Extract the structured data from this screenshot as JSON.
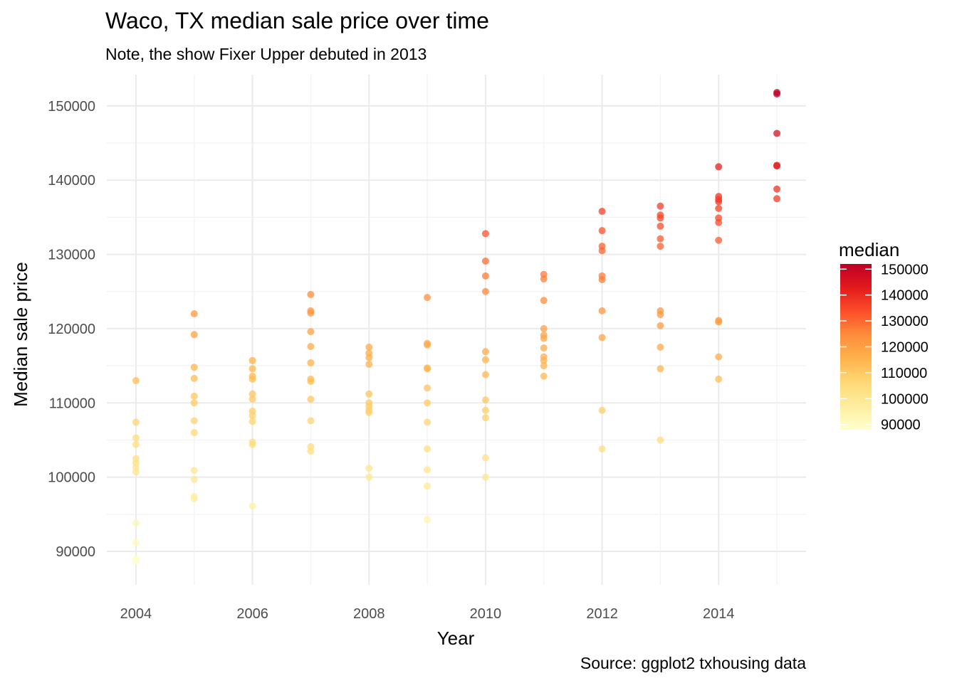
{
  "chart_data": {
    "type": "scatter",
    "title": "Waco, TX median sale price over time",
    "subtitle": "Note, the show Fixer Upper debuted in 2013",
    "xlabel": "Year",
    "ylabel": "Median sale price",
    "caption": "Source: ggplot2 txhousing data",
    "xlim": [
      2003.5,
      2015.5
    ],
    "ylim": [
      85500,
      154200
    ],
    "x_ticks": [
      2004,
      2006,
      2008,
      2010,
      2012,
      2014
    ],
    "x_tick_labels": [
      "2004",
      "2006",
      "2008",
      "2010",
      "2012",
      "2014"
    ],
    "y_ticks": [
      90000,
      100000,
      110000,
      120000,
      130000,
      140000,
      150000
    ],
    "y_tick_labels": [
      "90000",
      "100000",
      "110000",
      "120000",
      "130000",
      "140000",
      "150000"
    ],
    "grid": true,
    "legend": {
      "title": "median",
      "position": "right",
      "type": "colorbar",
      "range": [
        88000,
        152000
      ],
      "breaks": [
        90000,
        100000,
        110000,
        120000,
        130000,
        140000,
        150000
      ],
      "labels": [
        "90000",
        "100000",
        "110000",
        "120000",
        "130000",
        "140000",
        "150000"
      ],
      "palette": [
        "#ffffcc",
        "#ffeda0",
        "#fed976",
        "#feb24c",
        "#fd8d3c",
        "#fc4e2a",
        "#e31a1c",
        "#bd0026"
      ]
    },
    "points": [
      {
        "x": 2004,
        "y": 113000
      },
      {
        "x": 2004,
        "y": 107400
      },
      {
        "x": 2004,
        "y": 105300
      },
      {
        "x": 2004,
        "y": 104400
      },
      {
        "x": 2004,
        "y": 102500
      },
      {
        "x": 2004,
        "y": 101900
      },
      {
        "x": 2004,
        "y": 101300
      },
      {
        "x": 2004,
        "y": 100700
      },
      {
        "x": 2004,
        "y": 93800
      },
      {
        "x": 2004,
        "y": 91200
      },
      {
        "x": 2004,
        "y": 89000
      },
      {
        "x": 2004,
        "y": 88700
      },
      {
        "x": 2005,
        "y": 122000
      },
      {
        "x": 2005,
        "y": 119200
      },
      {
        "x": 2005,
        "y": 114800
      },
      {
        "x": 2005,
        "y": 113300
      },
      {
        "x": 2005,
        "y": 110900
      },
      {
        "x": 2005,
        "y": 110000
      },
      {
        "x": 2005,
        "y": 107600
      },
      {
        "x": 2005,
        "y": 106000
      },
      {
        "x": 2005,
        "y": 100900
      },
      {
        "x": 2005,
        "y": 99700
      },
      {
        "x": 2005,
        "y": 97400
      },
      {
        "x": 2005,
        "y": 97100
      },
      {
        "x": 2006,
        "y": 115700
      },
      {
        "x": 2006,
        "y": 114600
      },
      {
        "x": 2006,
        "y": 113600
      },
      {
        "x": 2006,
        "y": 113200
      },
      {
        "x": 2006,
        "y": 111200
      },
      {
        "x": 2006,
        "y": 110500
      },
      {
        "x": 2006,
        "y": 108900
      },
      {
        "x": 2006,
        "y": 108300
      },
      {
        "x": 2006,
        "y": 107500
      },
      {
        "x": 2006,
        "y": 104700
      },
      {
        "x": 2006,
        "y": 104400
      },
      {
        "x": 2006,
        "y": 96100
      },
      {
        "x": 2007,
        "y": 124600
      },
      {
        "x": 2007,
        "y": 122400
      },
      {
        "x": 2007,
        "y": 122100
      },
      {
        "x": 2007,
        "y": 119600
      },
      {
        "x": 2007,
        "y": 117600
      },
      {
        "x": 2007,
        "y": 115400
      },
      {
        "x": 2007,
        "y": 113200
      },
      {
        "x": 2007,
        "y": 112900
      },
      {
        "x": 2007,
        "y": 110500
      },
      {
        "x": 2007,
        "y": 107600
      },
      {
        "x": 2007,
        "y": 104100
      },
      {
        "x": 2007,
        "y": 103500
      },
      {
        "x": 2008,
        "y": 117500
      },
      {
        "x": 2008,
        "y": 116700
      },
      {
        "x": 2008,
        "y": 116100
      },
      {
        "x": 2008,
        "y": 115200
      },
      {
        "x": 2008,
        "y": 111200
      },
      {
        "x": 2008,
        "y": 110000
      },
      {
        "x": 2008,
        "y": 109500
      },
      {
        "x": 2008,
        "y": 109000
      },
      {
        "x": 2008,
        "y": 108700
      },
      {
        "x": 2008,
        "y": 101200
      },
      {
        "x": 2008,
        "y": 100000
      },
      {
        "x": 2009,
        "y": 124200
      },
      {
        "x": 2009,
        "y": 118000
      },
      {
        "x": 2009,
        "y": 117800
      },
      {
        "x": 2009,
        "y": 114700
      },
      {
        "x": 2009,
        "y": 114600
      },
      {
        "x": 2009,
        "y": 112000
      },
      {
        "x": 2009,
        "y": 110000
      },
      {
        "x": 2009,
        "y": 107400
      },
      {
        "x": 2009,
        "y": 103800
      },
      {
        "x": 2009,
        "y": 101000
      },
      {
        "x": 2009,
        "y": 98800
      },
      {
        "x": 2009,
        "y": 94300
      },
      {
        "x": 2010,
        "y": 132800
      },
      {
        "x": 2010,
        "y": 129100
      },
      {
        "x": 2010,
        "y": 127100
      },
      {
        "x": 2010,
        "y": 125000
      },
      {
        "x": 2010,
        "y": 116900
      },
      {
        "x": 2010,
        "y": 115800
      },
      {
        "x": 2010,
        "y": 113800
      },
      {
        "x": 2010,
        "y": 110400
      },
      {
        "x": 2010,
        "y": 109000
      },
      {
        "x": 2010,
        "y": 108000
      },
      {
        "x": 2010,
        "y": 102600
      },
      {
        "x": 2010,
        "y": 100000
      },
      {
        "x": 2011,
        "y": 127300
      },
      {
        "x": 2011,
        "y": 126700
      },
      {
        "x": 2011,
        "y": 123800
      },
      {
        "x": 2011,
        "y": 120000
      },
      {
        "x": 2011,
        "y": 119100
      },
      {
        "x": 2011,
        "y": 118700
      },
      {
        "x": 2011,
        "y": 117400
      },
      {
        "x": 2011,
        "y": 116200
      },
      {
        "x": 2011,
        "y": 115700
      },
      {
        "x": 2011,
        "y": 115000
      },
      {
        "x": 2011,
        "y": 113600
      },
      {
        "x": 2012,
        "y": 135800
      },
      {
        "x": 2012,
        "y": 133200
      },
      {
        "x": 2012,
        "y": 131100
      },
      {
        "x": 2012,
        "y": 130500
      },
      {
        "x": 2012,
        "y": 127100
      },
      {
        "x": 2012,
        "y": 126600
      },
      {
        "x": 2012,
        "y": 122400
      },
      {
        "x": 2012,
        "y": 118800
      },
      {
        "x": 2012,
        "y": 109000
      },
      {
        "x": 2012,
        "y": 103800
      },
      {
        "x": 2013,
        "y": 136500
      },
      {
        "x": 2013,
        "y": 135300
      },
      {
        "x": 2013,
        "y": 134900
      },
      {
        "x": 2013,
        "y": 133800
      },
      {
        "x": 2013,
        "y": 132100
      },
      {
        "x": 2013,
        "y": 131100
      },
      {
        "x": 2013,
        "y": 122400
      },
      {
        "x": 2013,
        "y": 121900
      },
      {
        "x": 2013,
        "y": 120400
      },
      {
        "x": 2013,
        "y": 117500
      },
      {
        "x": 2013,
        "y": 114600
      },
      {
        "x": 2013,
        "y": 105000
      },
      {
        "x": 2014,
        "y": 141800
      },
      {
        "x": 2014,
        "y": 137800
      },
      {
        "x": 2014,
        "y": 137400
      },
      {
        "x": 2014,
        "y": 137100
      },
      {
        "x": 2014,
        "y": 136200
      },
      {
        "x": 2014,
        "y": 134900
      },
      {
        "x": 2014,
        "y": 134300
      },
      {
        "x": 2014,
        "y": 131900
      },
      {
        "x": 2014,
        "y": 121100
      },
      {
        "x": 2014,
        "y": 120900
      },
      {
        "x": 2014,
        "y": 116200
      },
      {
        "x": 2014,
        "y": 113200
      },
      {
        "x": 2015,
        "y": 151800
      },
      {
        "x": 2015,
        "y": 151600
      },
      {
        "x": 2015,
        "y": 146300
      },
      {
        "x": 2015,
        "y": 142000
      },
      {
        "x": 2015,
        "y": 141900
      },
      {
        "x": 2015,
        "y": 138800
      },
      {
        "x": 2015,
        "y": 137500
      }
    ]
  }
}
